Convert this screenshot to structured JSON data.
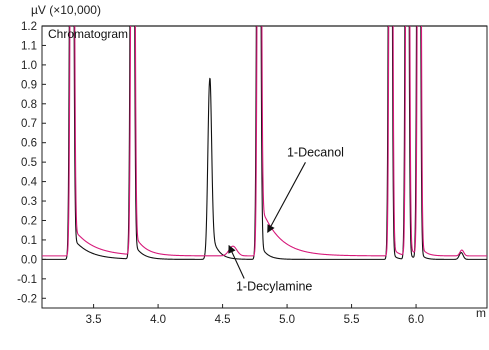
{
  "chart_data": {
    "type": "line",
    "y_unit_label": "µV (×10,000)",
    "x_unit_label": "m",
    "box_label": "Chromatogram",
    "xlim": [
      3.1,
      6.55
    ],
    "ylim": [
      -0.25,
      1.2
    ],
    "x_ticks": [
      {
        "value": 3.5,
        "label": "3.5"
      },
      {
        "value": 4.0,
        "label": "4.0"
      },
      {
        "value": 4.5,
        "label": "4.5"
      },
      {
        "value": 5.0,
        "label": "5.0"
      },
      {
        "value": 5.5,
        "label": "5.5"
      },
      {
        "value": 6.0,
        "label": "6.0"
      }
    ],
    "y_ticks": [
      {
        "value": 1.2,
        "label": "1.2"
      },
      {
        "value": 1.1,
        "label": "1.1"
      },
      {
        "value": 1.0,
        "label": "1.0"
      },
      {
        "value": 0.9,
        "label": "0.9"
      },
      {
        "value": 0.8,
        "label": "0.8"
      },
      {
        "value": 0.7,
        "label": "0.7"
      },
      {
        "value": 0.6,
        "label": "0.6"
      },
      {
        "value": 0.5,
        "label": "0.5"
      },
      {
        "value": 0.4,
        "label": "0.4"
      },
      {
        "value": 0.3,
        "label": "0.3"
      },
      {
        "value": 0.2,
        "label": "0.2"
      },
      {
        "value": 0.1,
        "label": "0.1"
      },
      {
        "value": 0.0,
        "label": "0.0"
      },
      {
        "value": -0.1,
        "label": "-0.1"
      },
      {
        "value": -0.2,
        "label": "-0.2"
      }
    ],
    "series": [
      {
        "color": "#111111",
        "baseline": 0.0,
        "peaks": [
          {
            "x": 3.33,
            "h": 5.0,
            "w": 0.011,
            "tail": 0.12,
            "td": 0.12
          },
          {
            "x": 3.8,
            "h": 5.0,
            "w": 0.011,
            "tail": 0.1,
            "td": 0.06
          },
          {
            "x": 4.4,
            "h": 0.92,
            "w": 0.014,
            "tail": 0.18,
            "td": 0.05
          },
          {
            "x": 4.78,
            "h": 5.0,
            "w": 0.011,
            "tail": 0.1,
            "td": 0.05
          },
          {
            "x": 5.8,
            "h": 5.0,
            "w": 0.01,
            "tail": 0.05,
            "td": 0.03
          },
          {
            "x": 5.93,
            "h": 5.0,
            "w": 0.01,
            "tail": 0.05,
            "td": 0.03
          },
          {
            "x": 6.02,
            "h": 5.0,
            "w": 0.01,
            "tail": 0.05,
            "td": 0.03
          },
          {
            "x": 6.35,
            "h": 0.035,
            "w": 0.015,
            "tail": 0.0,
            "td": 0.02
          }
        ]
      },
      {
        "color": "#d6197a",
        "baseline": 0.018,
        "peaks": [
          {
            "x": 3.335,
            "h": 5.0,
            "w": 0.011,
            "tail": 0.15,
            "td": 0.15
          },
          {
            "x": 3.805,
            "h": 5.0,
            "w": 0.011,
            "tail": 0.12,
            "td": 0.08
          },
          {
            "x": 4.58,
            "h": 0.05,
            "w": 0.03,
            "tail": 0.0,
            "td": 0.03
          },
          {
            "x": 4.785,
            "h": 5.0,
            "w": 0.011,
            "tail": 0.28,
            "td": 0.14
          },
          {
            "x": 5.805,
            "h": 5.0,
            "w": 0.01,
            "tail": 0.06,
            "td": 0.04
          },
          {
            "x": 5.935,
            "h": 5.0,
            "w": 0.01,
            "tail": 0.06,
            "td": 0.04
          },
          {
            "x": 6.025,
            "h": 5.0,
            "w": 0.01,
            "tail": 0.06,
            "td": 0.04
          },
          {
            "x": 6.355,
            "h": 0.03,
            "w": 0.015,
            "tail": 0.0,
            "td": 0.02
          }
        ]
      }
    ],
    "annotations": [
      {
        "text": "1-Decanol",
        "text_x": 5.22,
        "text_y": 0.53,
        "target_x": 4.85,
        "target_y": 0.14
      },
      {
        "text": "1-Decylamine",
        "text_x": 4.9,
        "text_y": -0.16,
        "target_x": 4.55,
        "target_y": 0.07
      }
    ]
  }
}
